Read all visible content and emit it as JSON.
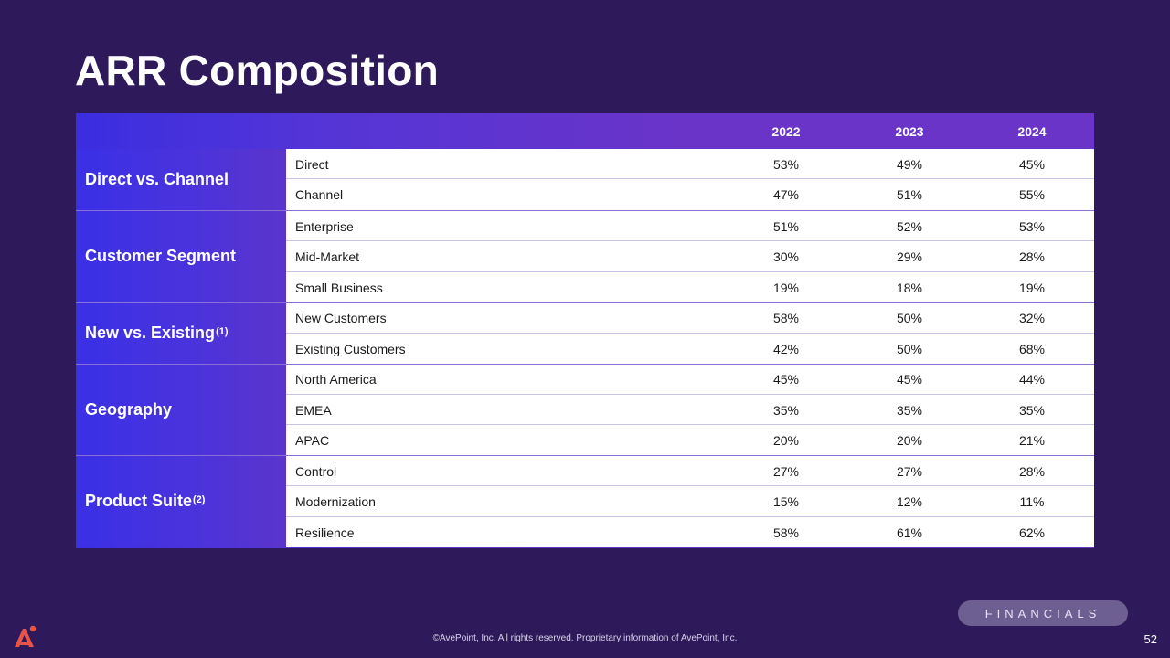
{
  "title": "ARR Composition",
  "years": [
    "2022",
    "2023",
    "2024"
  ],
  "groups": [
    {
      "label": "Direct vs. Channel",
      "sup": "",
      "rows": [
        {
          "name": "Direct",
          "values": [
            "53%",
            "49%",
            "45%"
          ]
        },
        {
          "name": "Channel",
          "values": [
            "47%",
            "51%",
            "55%"
          ]
        }
      ]
    },
    {
      "label": "Customer Segment",
      "sup": "",
      "rows": [
        {
          "name": "Enterprise",
          "values": [
            "51%",
            "52%",
            "53%"
          ]
        },
        {
          "name": "Mid-Market",
          "values": [
            "30%",
            "29%",
            "28%"
          ]
        },
        {
          "name": "Small Business",
          "values": [
            "19%",
            "18%",
            "19%"
          ]
        }
      ]
    },
    {
      "label": "New vs. Existing",
      "sup": "(1)",
      "rows": [
        {
          "name": "New Customers",
          "values": [
            "58%",
            "50%",
            "32%"
          ]
        },
        {
          "name": "Existing Customers",
          "values": [
            "42%",
            "50%",
            "68%"
          ]
        }
      ]
    },
    {
      "label": "Geography",
      "sup": "",
      "rows": [
        {
          "name": "North America",
          "values": [
            "45%",
            "45%",
            "44%"
          ]
        },
        {
          "name": "EMEA",
          "values": [
            "35%",
            "35%",
            "35%"
          ]
        },
        {
          "name": "APAC",
          "values": [
            "20%",
            "20%",
            "21%"
          ]
        }
      ]
    },
    {
      "label": "Product Suite",
      "sup": "(2)",
      "rows": [
        {
          "name": "Control",
          "values": [
            "27%",
            "27%",
            "28%"
          ]
        },
        {
          "name": "Modernization",
          "values": [
            "15%",
            "12%",
            "11%"
          ]
        },
        {
          "name": "Resilience",
          "values": [
            "58%",
            "61%",
            "62%"
          ]
        }
      ]
    }
  ],
  "section_pill": "FINANCIALS",
  "footer": "©AvePoint, Inc. All rights reserved. Proprietary information of AvePoint, Inc.",
  "page_number": "52",
  "logo_icon": "avepoint-logo-icon",
  "colors": {
    "background": "#2e1a5a",
    "header": "#6a34c8",
    "logo": "#e8534a"
  }
}
